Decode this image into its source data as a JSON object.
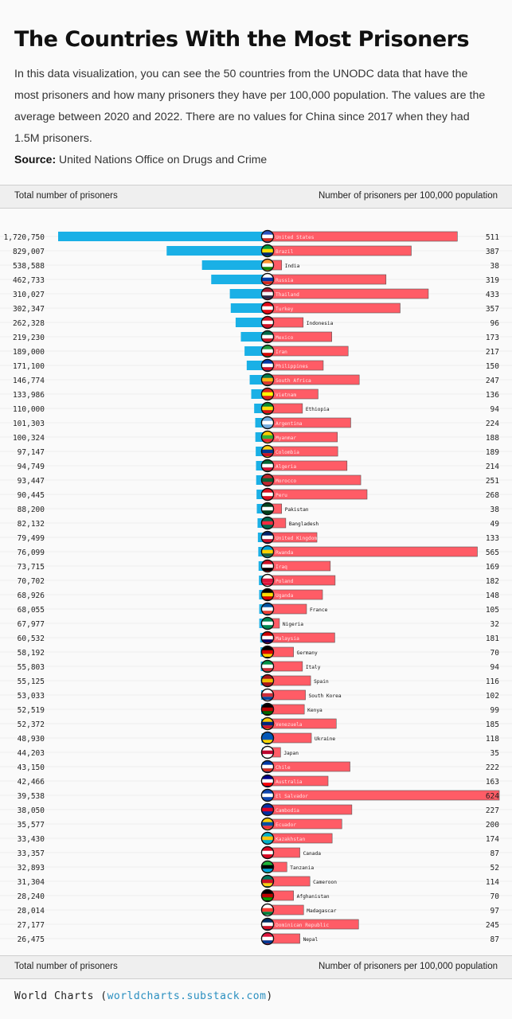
{
  "title": "The Countries With the Most Prisoners",
  "intro": "In this data visualization, you can see the 50 countries from the UNODC data that have the most prisoners and how many prisoners they have per 100,000 population. The values are the average between 2020 and 2022. There are no values for China since 2017 when they had 1.5M prisoners.",
  "source_label": "Source:",
  "source_text": "United Nations Office on Drugs and Crime",
  "axis_left": "Total number of prisoners",
  "axis_right": "Number of prisoners per 100,000 population",
  "footer_brand": "World Charts",
  "footer_link": "worldcharts.substack.com",
  "colors": {
    "total_bar": "#1ab0e6",
    "rate_bar": "#ff5c66",
    "grid": "#e4e4e4"
  },
  "chart_data": {
    "type": "bar",
    "layout": "diverging",
    "title": "The Countries With the Most Prisoners",
    "xlabel_left": "Total number of prisoners",
    "xlabel_right": "Number of prisoners per 100,000 population",
    "categories": [
      "United States",
      "Brazil",
      "India",
      "Russia",
      "Thailand",
      "Turkey",
      "Indonesia",
      "Mexico",
      "Iran",
      "Philippines",
      "South Africa",
      "Vietnam",
      "Ethiopia",
      "Argentina",
      "Myanmar",
      "Colombia",
      "Algeria",
      "Morocco",
      "Peru",
      "Pakistan",
      "Bangladesh",
      "United Kingdom",
      "Rwanda",
      "Iraq",
      "Poland",
      "Uganda",
      "France",
      "Nigeria",
      "Malaysia",
      "Germany",
      "Italy",
      "Spain",
      "South Korea",
      "Kenya",
      "Venezuela",
      "Ukraine",
      "Japan",
      "Chile",
      "Australia",
      "El Salvador",
      "Cambodia",
      "Ecuador",
      "Kazakhstan",
      "Canada",
      "Tanzania",
      "Cameroon",
      "Afghanistan",
      "Madagascar",
      "Dominican Republic",
      "Nepal"
    ],
    "totals_label": [
      "1,720,750",
      "829,007",
      "538,588",
      "462,733",
      "310,027",
      "302,347",
      "262,328",
      "219,230",
      "189,000",
      "171,100",
      "146,774",
      "133,986",
      "110,000",
      "101,303",
      "100,324",
      "97,147",
      "94,749",
      "93,447",
      "90,445",
      "88,200",
      "82,132",
      "79,499",
      "76,099",
      "73,715",
      "70,702",
      "68,926",
      "68,055",
      "67,977",
      "60,532",
      "58,192",
      "55,803",
      "55,125",
      "53,033",
      "52,519",
      "52,372",
      "48,930",
      "44,203",
      "43,150",
      "42,466",
      "39,538",
      "38,050",
      "35,577",
      "33,430",
      "33,357",
      "32,893",
      "31,304",
      "28,240",
      "28,014",
      "27,177",
      "26,475"
    ],
    "series": [
      {
        "name": "Total number of prisoners",
        "values": [
          1720750,
          829007,
          538588,
          462733,
          310027,
          302347,
          262328,
          219230,
          189000,
          171100,
          146774,
          133986,
          110000,
          101303,
          100324,
          97147,
          94749,
          93447,
          90445,
          88200,
          82132,
          79499,
          76099,
          73715,
          70702,
          68926,
          68055,
          67977,
          60532,
          58192,
          55803,
          55125,
          53033,
          52519,
          52372,
          48930,
          44203,
          43150,
          42466,
          39538,
          38050,
          35577,
          33430,
          33357,
          32893,
          31304,
          28240,
          28014,
          27177,
          26475
        ]
      },
      {
        "name": "Number of prisoners per 100,000 population",
        "values": [
          511,
          387,
          38,
          319,
          433,
          357,
          96,
          173,
          217,
          150,
          247,
          136,
          94,
          224,
          188,
          189,
          214,
          251,
          268,
          38,
          49,
          133,
          565,
          169,
          182,
          148,
          105,
          32,
          181,
          70,
          94,
          116,
          102,
          99,
          185,
          118,
          35,
          222,
          163,
          624,
          227,
          200,
          174,
          87,
          52,
          114,
          70,
          97,
          245,
          87
        ]
      }
    ]
  }
}
